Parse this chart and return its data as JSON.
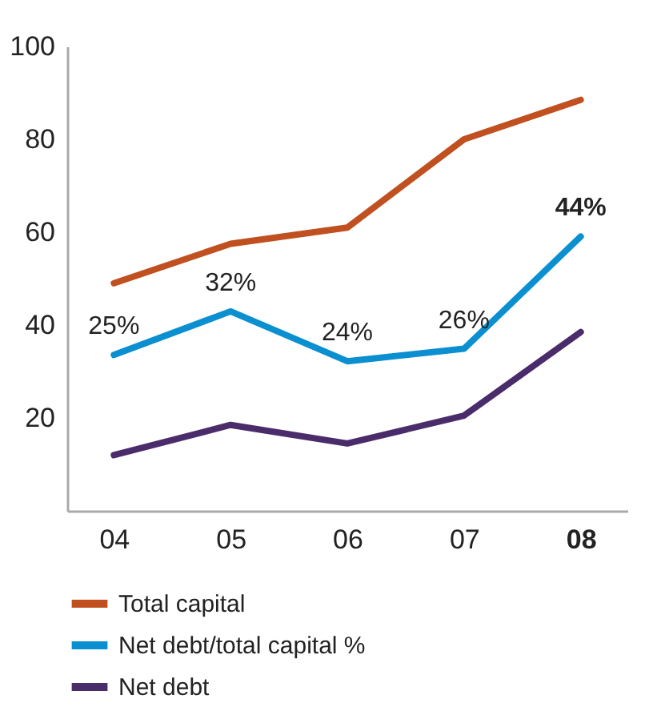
{
  "chart_data": {
    "type": "line",
    "categories": [
      "04",
      "05",
      "06",
      "07",
      "08"
    ],
    "ylim": [
      0,
      100
    ],
    "yticks": [
      20,
      40,
      60,
      80,
      100
    ],
    "y2lim": [
      0,
      74.5
    ],
    "grid": false,
    "legend": "bottom",
    "marker": "none",
    "line_style": "solid",
    "series": [
      {
        "name": "Total capital",
        "color": "#c0501f",
        "values": [
          49,
          57.5,
          61,
          80,
          88.5
        ]
      },
      {
        "name": "Net debt/total capital %",
        "color": "#0a8fd0",
        "axis": "y2",
        "values": [
          25,
          32,
          24,
          26,
          44
        ],
        "value_labels": [
          "25%",
          "32%",
          "24%",
          "26%",
          "44%"
        ]
      },
      {
        "name": "Net debt",
        "color": "#4a2c6b",
        "values": [
          12,
          18.5,
          14.5,
          20.5,
          38.5
        ]
      }
    ]
  }
}
